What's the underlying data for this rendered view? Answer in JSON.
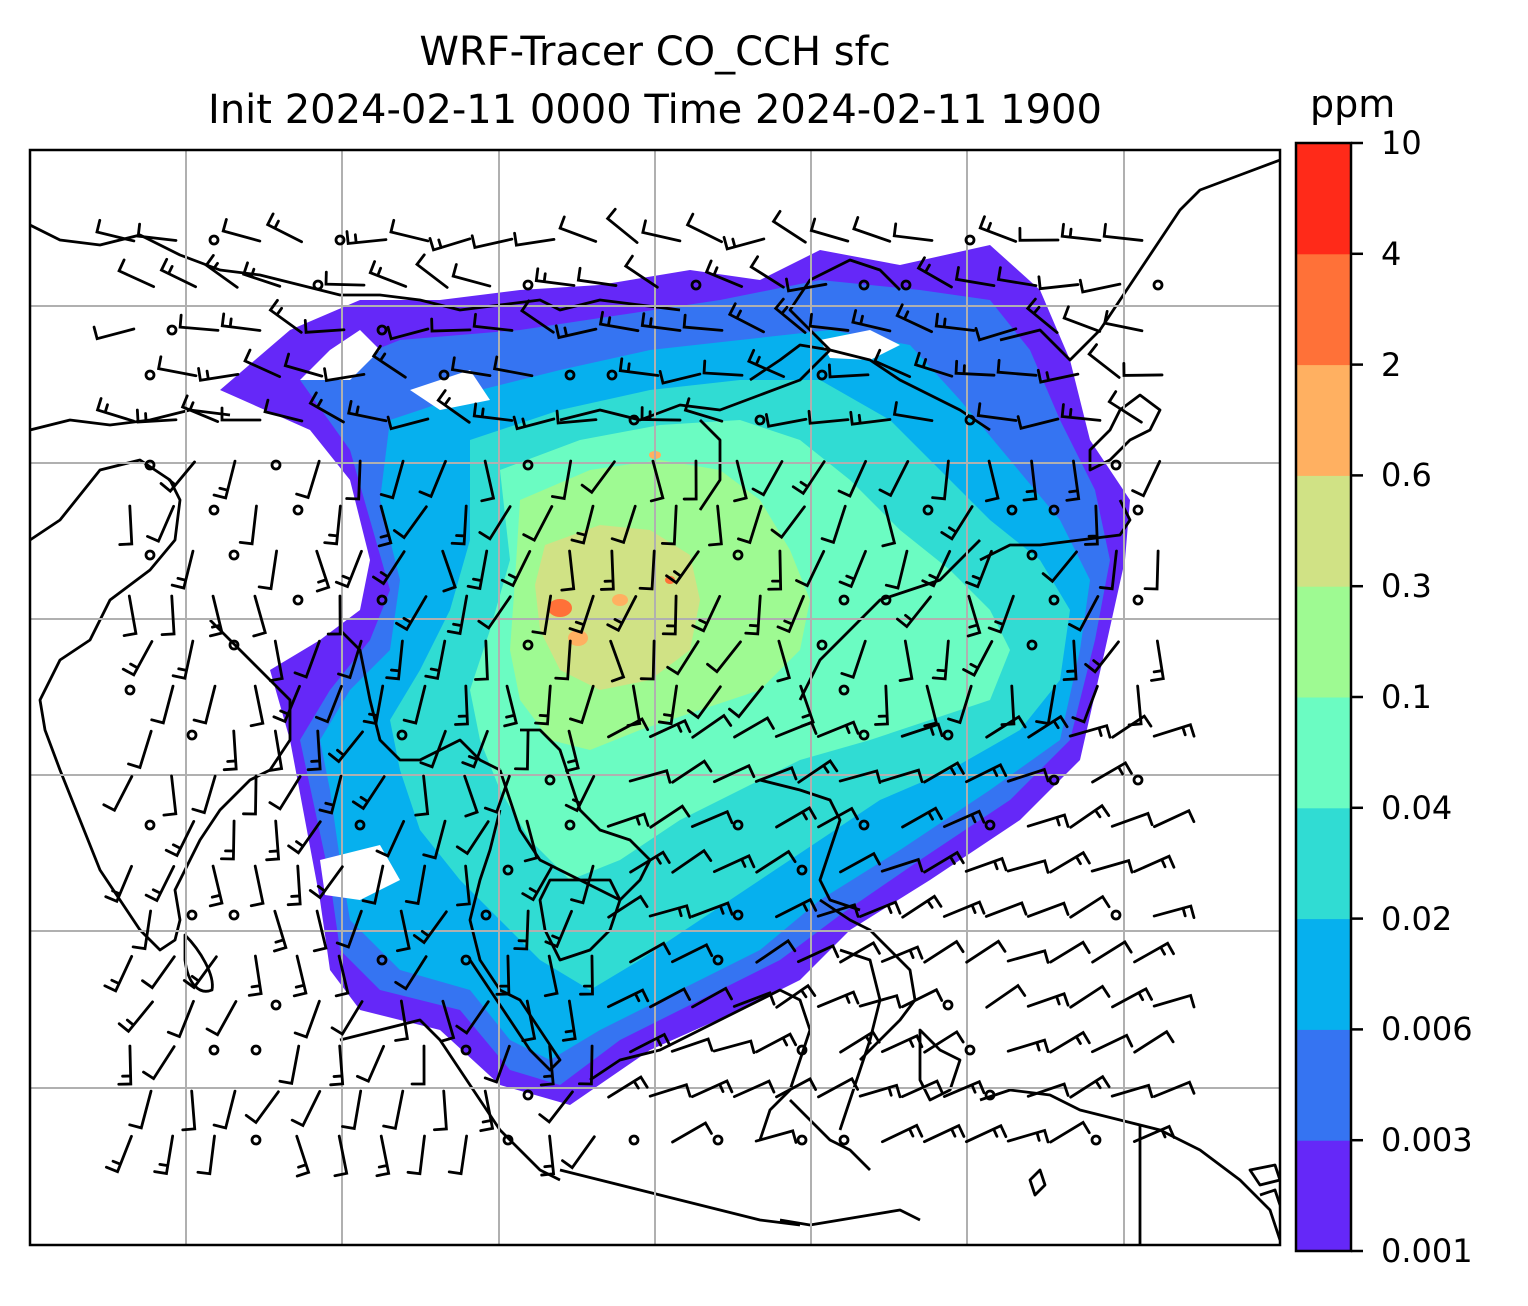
{
  "title": {
    "line1": "WRF-Tracer CO_CCH sfc",
    "line2": "Init 2024-02-11 0000 Time 2024-02-11 1900"
  },
  "colorbar": {
    "unit": "ppm",
    "ticks": [
      "0.001",
      "0.003",
      "0.006",
      "0.02",
      "0.04",
      "0.1",
      "0.3",
      "0.6",
      "2",
      "4",
      "10"
    ],
    "colors": [
      "#6528f8",
      "#3574f2",
      "#06b0ee",
      "#30dcd3",
      "#6bfcc2",
      "#9efa92",
      "#d0e285",
      "#ffb061",
      "#ff7138",
      "#ff2a19"
    ]
  },
  "map": {
    "gridlines": true,
    "wind_barbs": true,
    "field": "CO_CCH surface concentration"
  }
}
